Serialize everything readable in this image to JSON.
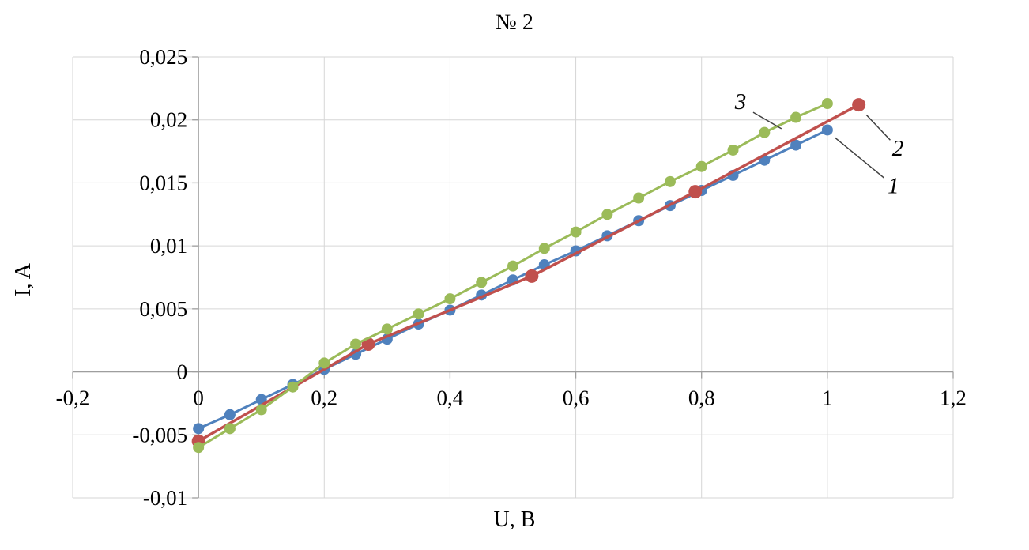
{
  "chart_data": {
    "type": "line",
    "title": "№ 2",
    "xlabel": "U, B",
    "ylabel": "I, A",
    "xlim": [
      -0.2,
      1.2
    ],
    "ylim": [
      -0.01,
      0.025
    ],
    "grid": true,
    "legend": "none",
    "decimal_separator": ",",
    "x_ticks": {
      "values": [
        -0.2,
        0,
        0.2,
        0.4,
        0.6,
        0.8,
        1,
        1.2
      ],
      "labels": [
        "-0,2",
        "0",
        "0,2",
        "0,4",
        "0,6",
        "0,8",
        "1",
        "1,2"
      ]
    },
    "y_ticks": {
      "values": [
        -0.01,
        -0.005,
        0,
        0.005,
        0.01,
        0.015,
        0.02,
        0.025
      ],
      "labels": [
        "-0,01",
        "-0,005",
        "0",
        "0,005",
        "0,01",
        "0,015",
        "0,02",
        "0,025"
      ]
    },
    "colors": {
      "grid": "#d6d6d6",
      "axis": "#9e9e9e",
      "annotation_line": "#404040",
      "text": "#000000"
    },
    "series": [
      {
        "name": "1",
        "color": "#4f81bd",
        "marker": "circle",
        "marker_radius": 7,
        "line_width": 3,
        "x": [
          0,
          0.05,
          0.1,
          0.15,
          0.2,
          0.25,
          0.3,
          0.35,
          0.4,
          0.45,
          0.5,
          0.55,
          0.6,
          0.65,
          0.7,
          0.75,
          0.8,
          0.85,
          0.9,
          0.95,
          1.0
        ],
        "y": [
          -0.0045,
          -0.0034,
          -0.0022,
          -0.001,
          0.0002,
          0.0014,
          0.0026,
          0.0038,
          0.0049,
          0.0061,
          0.0073,
          0.0085,
          0.0096,
          0.0108,
          0.012,
          0.0132,
          0.0144,
          0.0156,
          0.0168,
          0.018,
          0.0192
        ]
      },
      {
        "name": "2",
        "color": "#c0504d",
        "marker": "circle",
        "marker_radius": 8.5,
        "line_width": 3.5,
        "x": [
          0,
          0.27,
          0.53,
          0.79,
          1.05
        ],
        "y": [
          -0.0055,
          0.0022,
          0.0076,
          0.0143,
          0.0212
        ]
      },
      {
        "name": "3",
        "color": "#9bbb59",
        "marker": "circle",
        "marker_radius": 7,
        "line_width": 3,
        "x": [
          0,
          0.05,
          0.1,
          0.15,
          0.2,
          0.25,
          0.3,
          0.35,
          0.4,
          0.45,
          0.5,
          0.55,
          0.6,
          0.65,
          0.7,
          0.75,
          0.8,
          0.85,
          0.9,
          0.95,
          1.0
        ],
        "y": [
          -0.006,
          -0.0045,
          -0.003,
          -0.0012,
          0.0007,
          0.0022,
          0.0034,
          0.0046,
          0.0058,
          0.0071,
          0.0084,
          0.0098,
          0.0111,
          0.0125,
          0.0138,
          0.0151,
          0.0163,
          0.0176,
          0.019,
          0.0202,
          0.0213
        ]
      }
    ],
    "annotations": [
      {
        "label": "3",
        "text_x": 0.862,
        "text_y": 0.0215,
        "line_from": [
          0.882,
          0.0206
        ],
        "line_to": [
          0.927,
          0.0193
        ]
      },
      {
        "label": "2",
        "text_x": 1.112,
        "text_y": 0.0178,
        "line_from": [
          1.062,
          0.0204
        ],
        "line_to": [
          1.1,
          0.0184
        ]
      },
      {
        "label": "1",
        "text_x": 1.105,
        "text_y": 0.0148,
        "line_from": [
          1.012,
          0.0186
        ],
        "line_to": [
          1.09,
          0.0154
        ]
      }
    ]
  }
}
